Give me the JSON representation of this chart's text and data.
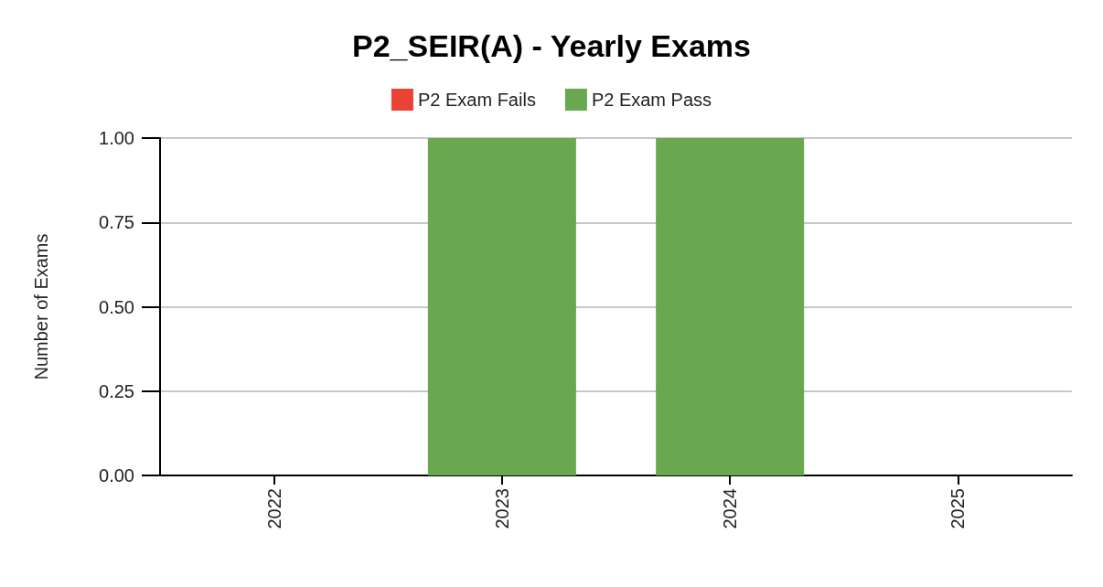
{
  "chart_data": {
    "type": "bar",
    "title": "P2_SEIR(A) - Yearly Exams",
    "ylabel": "Number of Exams",
    "categories": [
      "2022",
      "2023",
      "2024",
      "2025"
    ],
    "series": [
      {
        "name": "P2 Exam Fails",
        "color": "#ea4335",
        "values": [
          0,
          0,
          0,
          0
        ]
      },
      {
        "name": "P2 Exam Pass",
        "color": "#6aa84f",
        "values": [
          0,
          1,
          1,
          0
        ]
      }
    ],
    "stacked": true,
    "ylim": [
      0,
      1
    ],
    "yticks": [
      {
        "value": 0,
        "label": "0.00"
      },
      {
        "value": 0.25,
        "label": "0.25"
      },
      {
        "value": 0.5,
        "label": "0.50"
      },
      {
        "value": 0.75,
        "label": "0.75"
      },
      {
        "value": 1,
        "label": "1.00"
      }
    ],
    "grid": "y",
    "legend": "top"
  }
}
